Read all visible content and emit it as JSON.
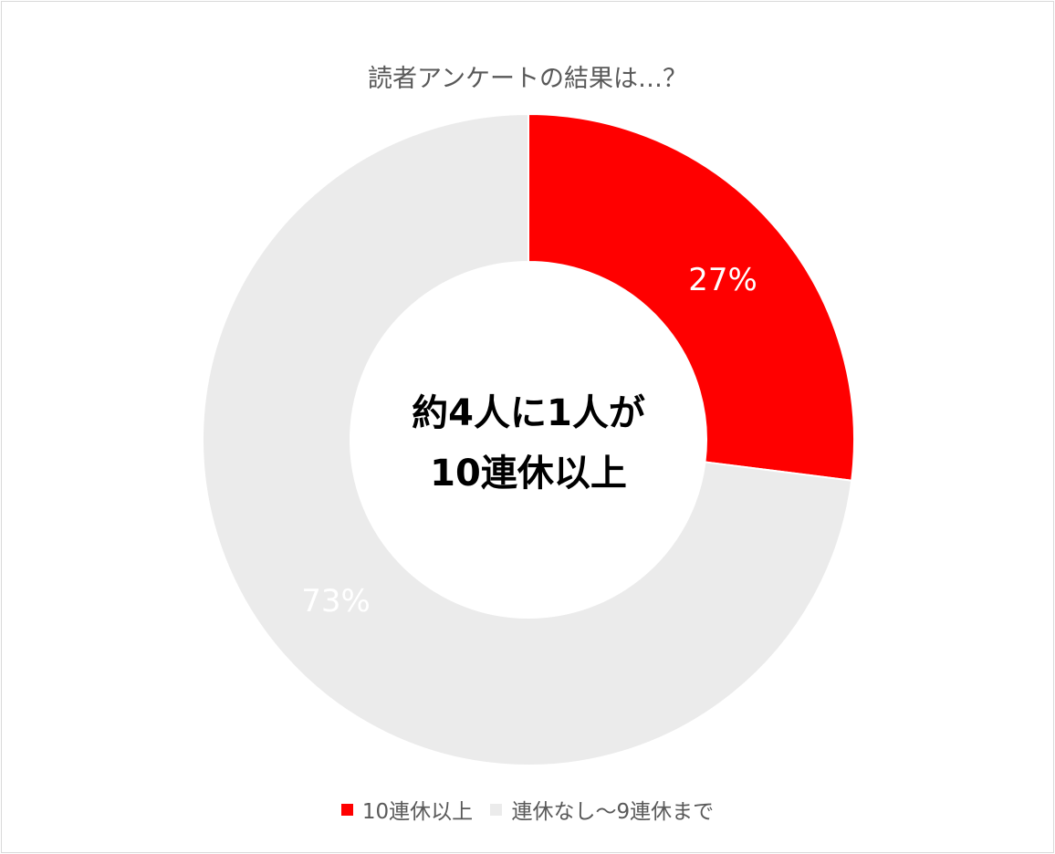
{
  "chart_data": {
    "type": "pie",
    "donut": true,
    "title": "読者アンケートの結果は…？",
    "center_text": [
      "約4人に1人が",
      "10連休以上"
    ],
    "categories": [
      "10連休以上",
      "連休なし～9連休まで"
    ],
    "values": [
      27,
      73
    ],
    "data_labels": [
      "27%",
      "73%"
    ],
    "colors": [
      "#ff0000",
      "#ebebeb"
    ],
    "label_color": "#ffffff",
    "legend_position": "bottom"
  }
}
